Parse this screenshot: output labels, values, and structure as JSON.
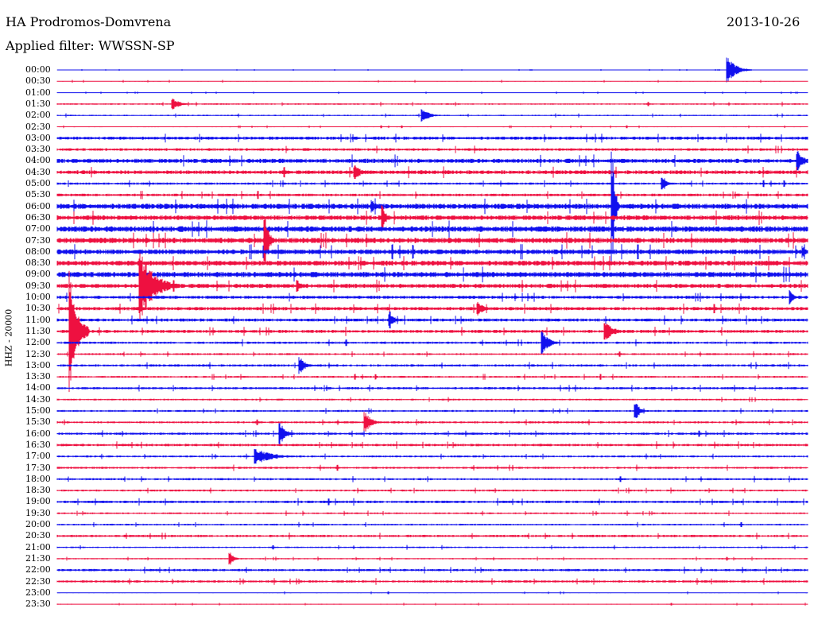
{
  "header": {
    "station": "HA Prodromos-Domvrena",
    "date": "2013-10-26",
    "filter_label": "Applied filter: WWSSN-SP"
  },
  "chart_data": {
    "type": "line",
    "title": "HA Prodromos-Domvrena",
    "channel_label": "HHZ - 20000",
    "rows": [
      "00:00",
      "00:30",
      "01:00",
      "01:30",
      "02:00",
      "02:30",
      "03:00",
      "03:30",
      "04:00",
      "04:30",
      "05:00",
      "05:30",
      "06:00",
      "06:30",
      "07:00",
      "07:30",
      "08:00",
      "08:30",
      "09:00",
      "09:30",
      "10:00",
      "10:30",
      "11:00",
      "11:30",
      "12:00",
      "12:30",
      "13:00",
      "13:30",
      "14:00",
      "14:30",
      "15:00",
      "15:30",
      "16:00",
      "16:30",
      "17:00",
      "17:30",
      "18:00",
      "18:30",
      "19:00",
      "19:30",
      "20:00",
      "20:30",
      "21:00",
      "21:30",
      "22:00",
      "22:30",
      "23:00",
      "23:30"
    ],
    "series_colors": [
      "#1010ee",
      "#ee1040"
    ],
    "x_range_minutes": [
      0,
      30
    ],
    "noise_level": [
      0.3,
      0.5,
      0.4,
      0.8,
      0.7,
      0.5,
      1.6,
      1.4,
      2.2,
      2.0,
      1.2,
      1.4,
      2.8,
      2.5,
      3.0,
      2.8,
      2.6,
      2.6,
      2.8,
      2.2,
      1.6,
      1.8,
      1.6,
      1.6,
      1.2,
      1.0,
      1.2,
      1.0,
      1.2,
      0.9,
      1.0,
      1.1,
      1.2,
      1.3,
      1.0,
      1.1,
      1.1,
      1.0,
      1.3,
      0.9,
      0.9,
      1.2,
      0.8,
      0.7,
      1.2,
      1.2,
      0.5,
      0.5
    ],
    "events": [
      {
        "row": 0,
        "minute": 26.8,
        "amplitude": 16,
        "duration": 1.0
      },
      {
        "row": 3,
        "minute": 4.6,
        "amplitude": 8,
        "duration": 0.8
      },
      {
        "row": 4,
        "minute": 14.6,
        "amplitude": 9,
        "duration": 0.8
      },
      {
        "row": 8,
        "minute": 29.6,
        "amplitude": 14,
        "duration": 0.7
      },
      {
        "row": 9,
        "minute": 11.9,
        "amplitude": 10,
        "duration": 0.7
      },
      {
        "row": 10,
        "minute": 24.2,
        "amplitude": 12,
        "duration": 0.4
      },
      {
        "row": 12,
        "minute": 12.6,
        "amplitude": 8,
        "duration": 0.6
      },
      {
        "row": 12,
        "minute": 22.2,
        "amplitude": 70,
        "duration": 0.3
      },
      {
        "row": 13,
        "minute": 13.0,
        "amplitude": 18,
        "duration": 0.4
      },
      {
        "row": 15,
        "minute": 8.3,
        "amplitude": 40,
        "duration": 0.4
      },
      {
        "row": 16,
        "minute": 29.8,
        "amplitude": 8,
        "duration": 0.5
      },
      {
        "row": 19,
        "minute": 3.3,
        "amplitude": 45,
        "duration": 1.6
      },
      {
        "row": 19,
        "minute": 9.6,
        "amplitude": 10,
        "duration": 0.4
      },
      {
        "row": 20,
        "minute": 29.3,
        "amplitude": 9,
        "duration": 0.5
      },
      {
        "row": 21,
        "minute": 16.8,
        "amplitude": 9,
        "duration": 0.8
      },
      {
        "row": 22,
        "minute": 13.3,
        "amplitude": 12,
        "duration": 0.5
      },
      {
        "row": 23,
        "minute": 0.5,
        "amplitude": 80,
        "duration": 0.8
      },
      {
        "row": 23,
        "minute": 21.9,
        "amplitude": 14,
        "duration": 0.9
      },
      {
        "row": 24,
        "minute": 19.4,
        "amplitude": 16,
        "duration": 0.7
      },
      {
        "row": 26,
        "minute": 9.7,
        "amplitude": 12,
        "duration": 0.6
      },
      {
        "row": 30,
        "minute": 23.1,
        "amplitude": 14,
        "duration": 0.5
      },
      {
        "row": 31,
        "minute": 12.3,
        "amplitude": 14,
        "duration": 0.7
      },
      {
        "row": 32,
        "minute": 8.9,
        "amplitude": 16,
        "duration": 0.6
      },
      {
        "row": 34,
        "minute": 7.9,
        "amplitude": 11,
        "duration": 1.8
      },
      {
        "row": 43,
        "minute": 6.9,
        "amplitude": 11,
        "duration": 0.4
      }
    ]
  }
}
